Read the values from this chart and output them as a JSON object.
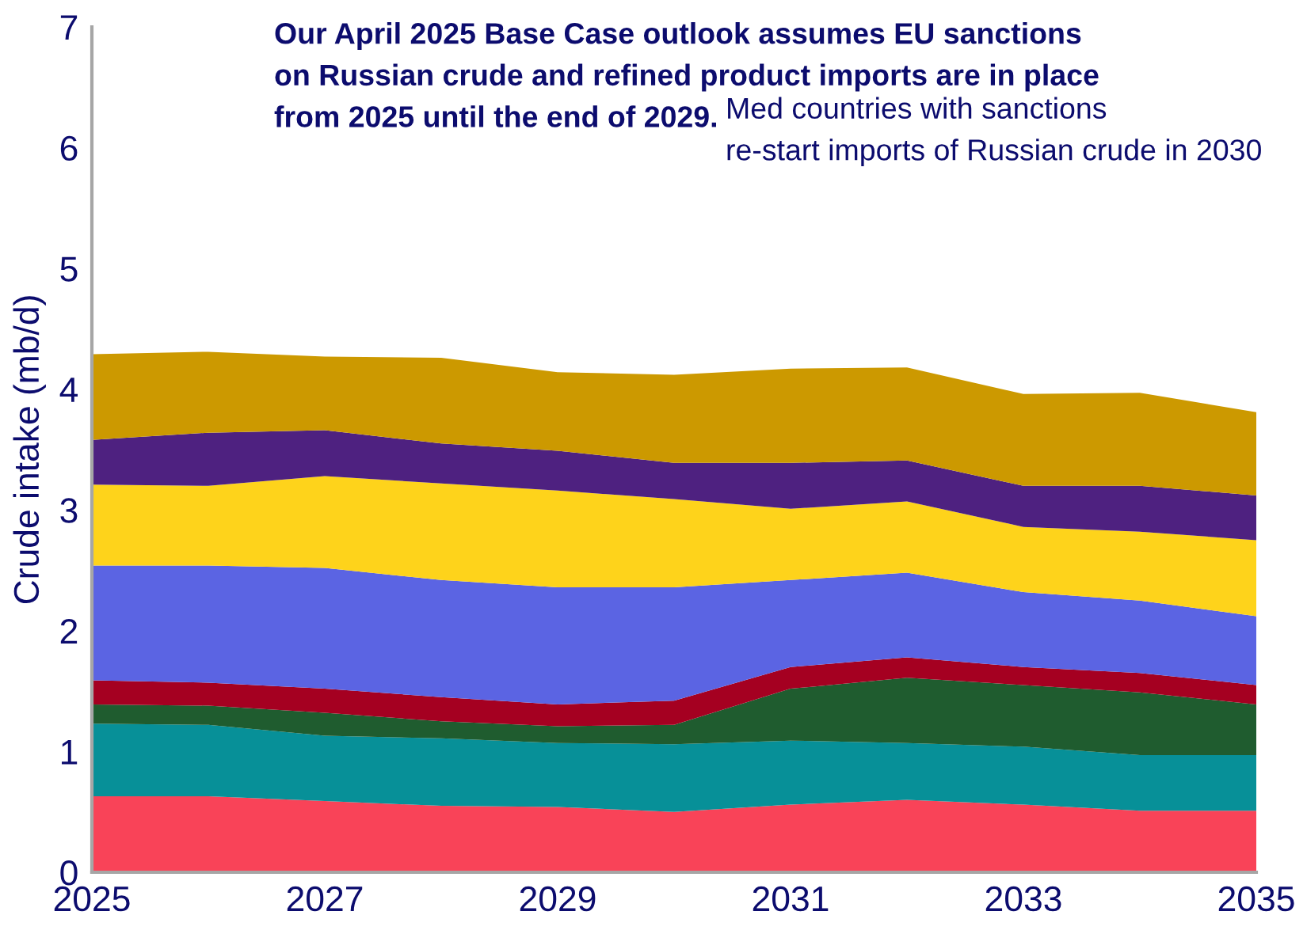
{
  "chart_data": {
    "type": "area",
    "stacked": true,
    "ylabel": "Crude intake (mb/d)",
    "annotations": [
      "Our April 2025 Base Case outlook assumes EU sanctions\non Russian crude and refined product imports are in place\nfrom 2025 until the end of 2029.",
      "Med countries with sanctions\nre-start imports of Russian crude in 2030"
    ],
    "x": [
      2025,
      2026,
      2027,
      2028,
      2029,
      2030,
      2031,
      2032,
      2033,
      2034,
      2035
    ],
    "series": [
      {
        "color": "#f94358",
        "values": [
          0.63,
          0.63,
          0.59,
          0.55,
          0.54,
          0.5,
          0.56,
          0.6,
          0.56,
          0.51,
          0.51
        ]
      },
      {
        "color": "#079098",
        "values": [
          0.6,
          0.59,
          0.54,
          0.56,
          0.53,
          0.56,
          0.53,
          0.47,
          0.48,
          0.46,
          0.46
        ]
      },
      {
        "color": "#1f5c2f",
        "values": [
          0.16,
          0.16,
          0.19,
          0.14,
          0.14,
          0.16,
          0.43,
          0.54,
          0.51,
          0.52,
          0.42
        ]
      },
      {
        "color": "#a50021",
        "values": [
          0.2,
          0.19,
          0.2,
          0.2,
          0.18,
          0.2,
          0.18,
          0.17,
          0.15,
          0.16,
          0.16
        ]
      },
      {
        "color": "#5b64e3",
        "values": [
          0.95,
          0.97,
          1.0,
          0.97,
          0.97,
          0.94,
          0.72,
          0.7,
          0.62,
          0.6,
          0.57
        ]
      },
      {
        "color": "#fed31b",
        "values": [
          0.67,
          0.66,
          0.76,
          0.8,
          0.8,
          0.73,
          0.59,
          0.59,
          0.54,
          0.57,
          0.63
        ]
      },
      {
        "color": "#4e2180",
        "values": [
          0.37,
          0.44,
          0.38,
          0.33,
          0.33,
          0.3,
          0.38,
          0.34,
          0.34,
          0.38,
          0.37
        ]
      },
      {
        "color": "#cc9900",
        "values": [
          0.71,
          0.67,
          0.61,
          0.71,
          0.65,
          0.73,
          0.78,
          0.77,
          0.76,
          0.77,
          0.69
        ]
      }
    ],
    "xlim": [
      2025,
      2035
    ],
    "xticks": [
      2025,
      2027,
      2029,
      2031,
      2033,
      2035
    ],
    "ylim": [
      0,
      7
    ],
    "yticks": [
      0,
      1,
      2,
      3,
      4,
      5,
      6,
      7
    ],
    "grid": false
  }
}
